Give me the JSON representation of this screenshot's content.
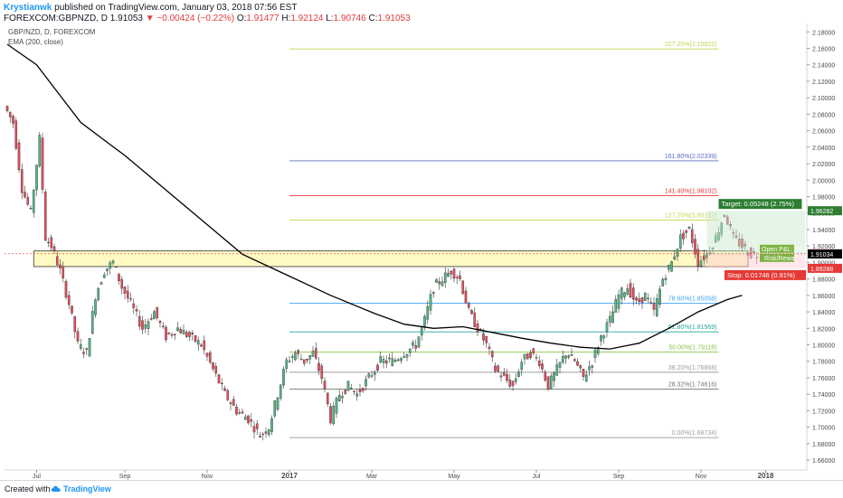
{
  "header": {
    "author": "Krystianwk",
    "published": " published on TradingView.com, January 03, 2018 07:56 EST",
    "symbol": "FOREXCOM:GBPNZD, D",
    "last": "1.91053",
    "change": "▼ −0.00424 (−0.22%)",
    "o_label": "O:",
    "o_val": "1.91477",
    "h_label": "H:",
    "h_val": "1.92124",
    "l_label": "L:",
    "l_val": "1.90746",
    "c_label": "C:",
    "c_val": "1.91053"
  },
  "legend": {
    "pair": "GBP/NZD, D, FOREXCOM",
    "indicator": "EMA (200, close)"
  },
  "footer": {
    "created": "Created with",
    "brand": "TradingView"
  },
  "colors": {
    "up": "#4caf50",
    "down": "#e23b3b",
    "candle_up": "#53b987",
    "candle_down": "#eb4d5c",
    "ema": "#000000",
    "zone": "#fff59d",
    "fib_227": "#c6d44a",
    "fib_1618": "#5c6bc0",
    "fib_1414": "#e53935",
    "fib_127": "#c6d44a",
    "fib_786": "#42a5f5",
    "fib_618": "#26a69a",
    "fib_50": "#8bc34a",
    "fib_382": "#9e9e9e",
    "fib_2832": "#757575",
    "fib_0": "#9e9e9e",
    "target": "#2e7d32",
    "stop": "#e53935"
  },
  "chart_data": {
    "type": "candlestick",
    "x_ticks": [
      "Jul",
      "Sep",
      "Nov",
      "2017",
      "Mar",
      "May",
      "Jul",
      "Sep",
      "Nov",
      "2018"
    ],
    "y_ticks": [
      "1.66000",
      "1.68000",
      "1.70000",
      "1.72000",
      "1.74000",
      "1.76000",
      "1.78000",
      "1.80000",
      "1.82000",
      "1.84000",
      "1.86000",
      "1.88000",
      "1.90000",
      "1.92000",
      "1.94000",
      "1.96000",
      "1.98000",
      "2.00000",
      "2.02000",
      "2.04000",
      "2.06000",
      "2.08000",
      "2.10000",
      "2.12000",
      "2.14000",
      "2.16000",
      "2.18000"
    ],
    "ylim": [
      1.648,
      2.188
    ],
    "price_path": [
      [
        0,
        2.09
      ],
      [
        3,
        2.07
      ],
      [
        6,
        1.99
      ],
      [
        9,
        1.96
      ],
      [
        12,
        2.05
      ],
      [
        14,
        1.93
      ],
      [
        16,
        1.92
      ],
      [
        19,
        1.89
      ],
      [
        22,
        1.85
      ],
      [
        25,
        1.8
      ],
      [
        28,
        1.79
      ],
      [
        31,
        1.86
      ],
      [
        34,
        1.89
      ],
      [
        37,
        1.9
      ],
      [
        40,
        1.87
      ],
      [
        43,
        1.85
      ],
      [
        47,
        1.82
      ],
      [
        51,
        1.84
      ],
      [
        55,
        1.81
      ],
      [
        59,
        1.82
      ],
      [
        63,
        1.81
      ],
      [
        67,
        1.8
      ],
      [
        71,
        1.77
      ],
      [
        75,
        1.74
      ],
      [
        79,
        1.72
      ],
      [
        83,
        1.71
      ],
      [
        87,
        1.69
      ],
      [
        90,
        1.7
      ],
      [
        93,
        1.74
      ],
      [
        96,
        1.78
      ],
      [
        99,
        1.79
      ],
      [
        102,
        1.78
      ],
      [
        105,
        1.79
      ],
      [
        108,
        1.76
      ],
      [
        111,
        1.71
      ],
      [
        114,
        1.74
      ],
      [
        117,
        1.75
      ],
      [
        120,
        1.74
      ],
      [
        124,
        1.76
      ],
      [
        128,
        1.78
      ],
      [
        132,
        1.78
      ],
      [
        136,
        1.79
      ],
      [
        140,
        1.8
      ],
      [
        143,
        1.83
      ],
      [
        146,
        1.87
      ],
      [
        149,
        1.88
      ],
      [
        152,
        1.89
      ],
      [
        155,
        1.88
      ],
      [
        158,
        1.84
      ],
      [
        161,
        1.82
      ],
      [
        164,
        1.8
      ],
      [
        167,
        1.77
      ],
      [
        170,
        1.76
      ],
      [
        173,
        1.75
      ],
      [
        176,
        1.78
      ],
      [
        179,
        1.79
      ],
      [
        182,
        1.78
      ],
      [
        185,
        1.75
      ],
      [
        188,
        1.77
      ],
      [
        191,
        1.79
      ],
      [
        194,
        1.78
      ],
      [
        197,
        1.76
      ],
      [
        200,
        1.78
      ],
      [
        203,
        1.81
      ],
      [
        206,
        1.83
      ],
      [
        209,
        1.86
      ],
      [
        212,
        1.87
      ],
      [
        215,
        1.85
      ],
      [
        218,
        1.86
      ],
      [
        221,
        1.84
      ],
      [
        224,
        1.88
      ],
      [
        227,
        1.9
      ],
      [
        230,
        1.93
      ],
      [
        233,
        1.94
      ],
      [
        236,
        1.9
      ],
      [
        239,
        1.91
      ],
      [
        242,
        1.93
      ],
      [
        245,
        1.96
      ],
      [
        248,
        1.93
      ],
      [
        251,
        1.92
      ],
      [
        254,
        1.91
      ]
    ],
    "ema_path": [
      [
        0,
        2.165
      ],
      [
        10,
        2.14
      ],
      [
        25,
        2.07
      ],
      [
        40,
        2.03
      ],
      [
        60,
        1.97
      ],
      [
        80,
        1.91
      ],
      [
        95,
        1.885
      ],
      [
        110,
        1.86
      ],
      [
        125,
        1.838
      ],
      [
        135,
        1.825
      ],
      [
        145,
        1.82
      ],
      [
        155,
        1.822
      ],
      [
        165,
        1.815
      ],
      [
        175,
        1.808
      ],
      [
        185,
        1.802
      ],
      [
        195,
        1.797
      ],
      [
        205,
        1.795
      ],
      [
        215,
        1.802
      ],
      [
        225,
        1.82
      ],
      [
        235,
        1.84
      ],
      [
        245,
        1.855
      ],
      [
        250,
        1.86
      ]
    ],
    "fib_levels": [
      {
        "label": "227.20%(2.15922)",
        "price": 2.15922,
        "color_key": "fib_227"
      },
      {
        "label": "161.80%(2.02339)",
        "price": 2.02339,
        "color_key": "fib_1618"
      },
      {
        "label": "141.40%(1.98102)",
        "price": 1.98102,
        "color_key": "fib_1414"
      },
      {
        "label": "127.20%(1.95152)",
        "price": 1.95152,
        "color_key": "fib_127"
      },
      {
        "label": "78.60%(1.85058)",
        "price": 1.85058,
        "color_key": "fib_786"
      },
      {
        "label": "61.80%(1.81569)",
        "price": 1.81569,
        "color_key": "fib_618"
      },
      {
        "label": "50.00%(1.79118)",
        "price": 1.79118,
        "color_key": "fib_50"
      },
      {
        "label": "38.20%(1.76668)",
        "price": 1.76668,
        "color_key": "fib_382"
      },
      {
        "label": "28.32%(1.74616)",
        "price": 1.74616,
        "color_key": "fib_2832"
      },
      {
        "label": "0.00%(1.68734)",
        "price": 1.68734,
        "color_key": "fib_0"
      }
    ],
    "zone": {
      "top": 1.914,
      "bottom": 1.895
    },
    "position": {
      "target_label": "Target: 0.05248 (2.75%)",
      "open_label": "Open P&L: 0.0",
      "risk_label": "Risk/Rewa",
      "stop_label": "Stop: 0.01746 (0.91%)",
      "target_price": 1.96282,
      "stop_price": 1.89288
    },
    "price_tags": [
      {
        "label": "1.96282",
        "price": 1.96282,
        "color_key": "target"
      },
      {
        "label": "1.91053",
        "price": 1.91053,
        "color_key": "down"
      },
      {
        "label": "1.91034",
        "price": 1.91034,
        "color_key": "ema"
      },
      {
        "label": "1.89288",
        "price": 1.89288,
        "color_key": "stop"
      }
    ]
  }
}
